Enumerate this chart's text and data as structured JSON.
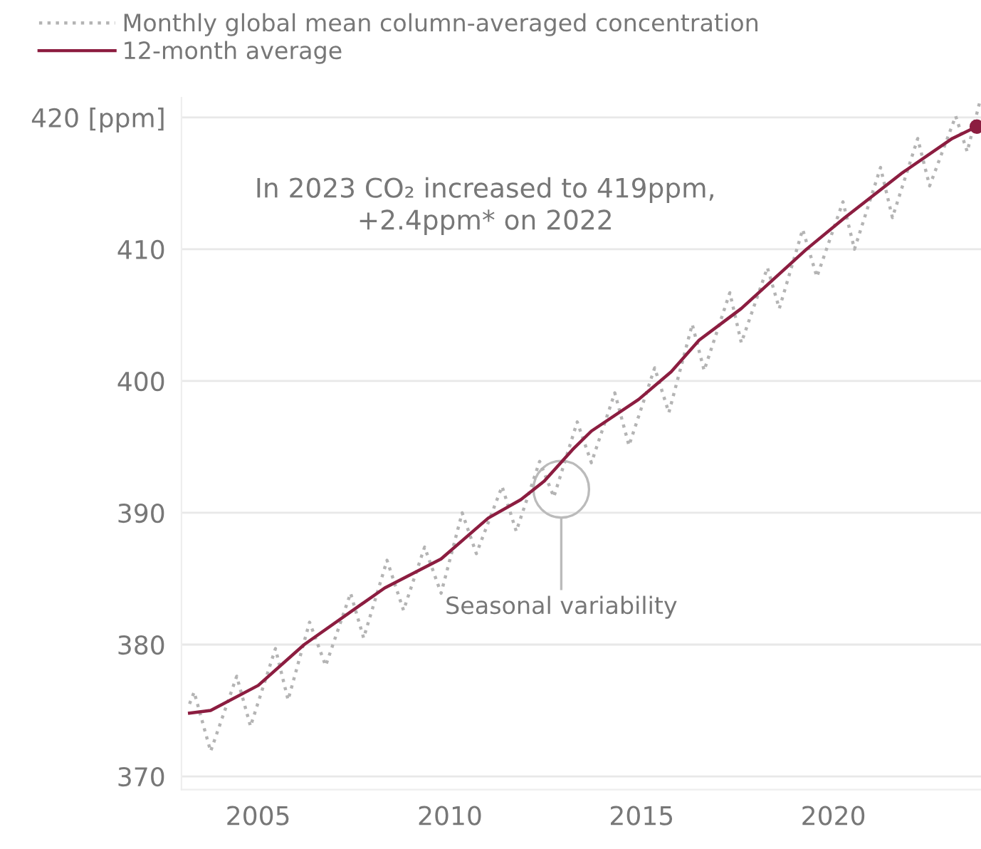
{
  "chart_data": {
    "type": "line",
    "xlim": [
      2003.0,
      2023.85
    ],
    "xticks": [
      2005,
      2010,
      2015,
      2020
    ],
    "ylim": [
      369,
      421.5
    ],
    "yticks": [
      370,
      380,
      390,
      400,
      410,
      {
        "value": 420,
        "label": "420 [ppm]"
      }
    ],
    "grid": "y",
    "legend": "top left",
    "series": [
      {
        "name": "Monthly global mean column-averaged concentration",
        "color": "#b4b4b4",
        "line_style": "dotted",
        "x": [
          2003.21,
          2003.33,
          2003.76,
          2004.44,
          2004.8,
          2005.45,
          2005.78,
          2006.34,
          2006.76,
          2007.41,
          2007.75,
          2008.36,
          2008.79,
          2009.34,
          2009.77,
          2010.32,
          2010.69,
          2011.36,
          2011.73,
          2012.34,
          2012.71,
          2013.32,
          2013.69,
          2014.3,
          2014.67,
          2015.34,
          2015.71,
          2016.32,
          2016.63,
          2017.3,
          2017.6,
          2018.28,
          2018.59,
          2019.2,
          2019.57,
          2020.25,
          2020.55,
          2021.23,
          2021.54,
          2022.2,
          2022.51,
          2023.19,
          2023.49,
          2023.82
        ],
        "values": [
          375.5,
          376.4,
          371.9,
          377.6,
          373.8,
          379.7,
          375.8,
          381.7,
          378.4,
          383.9,
          380.5,
          386.4,
          382.6,
          387.4,
          383.9,
          390.0,
          386.9,
          392.0,
          388.6,
          393.9,
          391.2,
          396.9,
          393.8,
          399.1,
          395.1,
          401.0,
          397.6,
          404.3,
          400.8,
          406.7,
          402.9,
          408.6,
          405.5,
          411.5,
          407.9,
          413.6,
          410.0,
          416.2,
          412.4,
          418.4,
          414.8,
          420.1,
          417.4,
          421.2
        ]
      },
      {
        "name": "12-month average",
        "color": "#8c1d40",
        "line_style": "solid",
        "x": [
          2003.21,
          2003.76,
          2005.0,
          2006.2,
          2008.3,
          2009.77,
          2011.0,
          2011.85,
          2012.46,
          2013.2,
          2013.69,
          2014.92,
          2015.77,
          2016.5,
          2017.6,
          2019.3,
          2020.3,
          2021.8,
          2023.1,
          2023.74
        ],
        "values": [
          374.8,
          375.0,
          376.9,
          380.0,
          384.3,
          386.5,
          389.6,
          391.0,
          392.4,
          394.8,
          396.2,
          398.6,
          400.7,
          403.1,
          405.5,
          410.0,
          412.4,
          415.8,
          418.4,
          419.3
        ]
      },
      {
        "type": "scatter",
        "color": "#8c1d40",
        "marker": "circle",
        "x": [
          2023.74
        ],
        "values": [
          419.3
        ]
      }
    ],
    "annotations": [
      "In 2023 CO₂ increased to 419ppm,\n+2.4ppm* on 2022",
      "Seasonal variability"
    ]
  }
}
